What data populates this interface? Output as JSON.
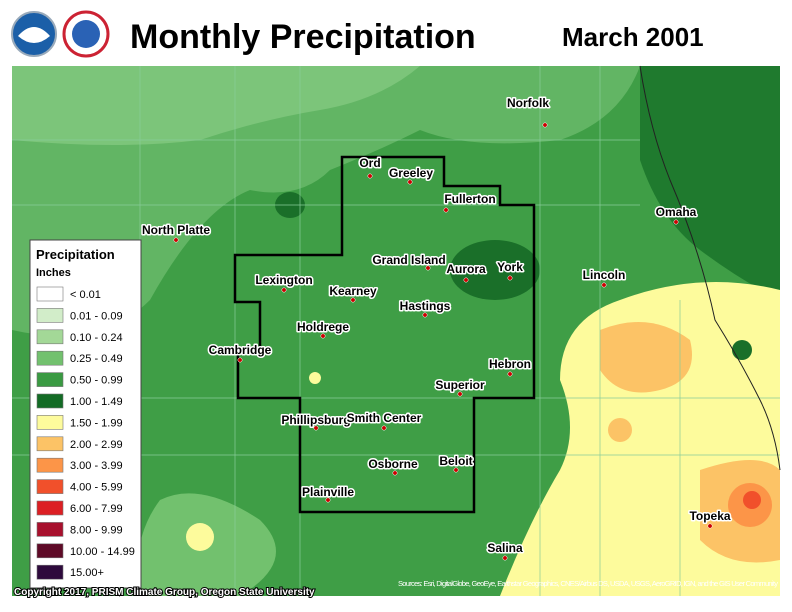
{
  "header": {
    "title": "Monthly Precipitation",
    "date": "March 2001"
  },
  "legend": {
    "title": "Precipitation",
    "units": "Inches",
    "items": [
      {
        "label": "< 0.01",
        "color": "#ffffff"
      },
      {
        "label": "0.01 - 0.09",
        "color": "#d2edc9"
      },
      {
        "label": "0.10 - 0.24",
        "color": "#a3d897"
      },
      {
        "label": "0.25 - 0.49",
        "color": "#72c16e"
      },
      {
        "label": "0.50 - 0.99",
        "color": "#3a9a42"
      },
      {
        "label": "1.00 - 1.49",
        "color": "#136b25"
      },
      {
        "label": "1.50 - 1.99",
        "color": "#fdfb9c"
      },
      {
        "label": "2.00 - 2.99",
        "color": "#fcc366"
      },
      {
        "label": "3.00 - 3.99",
        "color": "#fc9548"
      },
      {
        "label": "4.00 - 5.99",
        "color": "#f1502b"
      },
      {
        "label": "6.00 - 7.99",
        "color": "#dc1f24"
      },
      {
        "label": "8.00 - 9.99",
        "color": "#a8102d"
      },
      {
        "label": "10.00 - 14.99",
        "color": "#5e0a27"
      },
      {
        "label": "15.00+",
        "color": "#2e0a3c"
      }
    ]
  },
  "cities": [
    "Norfolk",
    "Ord",
    "Greeley",
    "Fullerton",
    "Omaha",
    "North Platte",
    "Grand Island",
    "Aurora",
    "York",
    "Lincoln",
    "Lexington",
    "Kearney",
    "Hastings",
    "Holdrege",
    "Cambridge",
    "Hebron",
    "Superior",
    "Phillipsburg",
    "Smith Center",
    "Osborne",
    "Beloit",
    "Plainville",
    "Topeka",
    "Salina"
  ],
  "footer": {
    "copyright": "Copyright 2017, PRISM Climate Group, Oregon State University",
    "sources": "Sources: Esri, DigitalGlobe, GeoEye, Earthstar Geographics, CNES/Airbus DS, USDA, USGS, AeroGRID, IGN, and the GIS User Community"
  }
}
